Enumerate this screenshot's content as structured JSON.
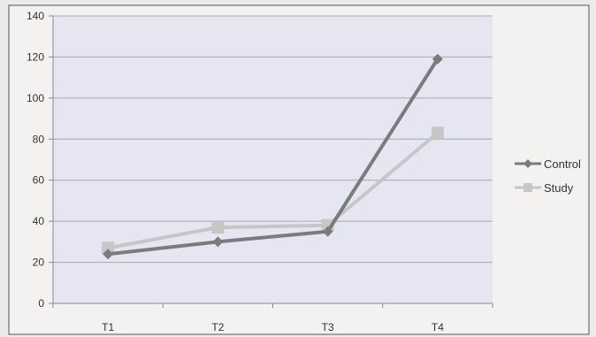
{
  "chart_data": {
    "type": "line",
    "categories": [
      "T1",
      "T2",
      "T3",
      "T4"
    ],
    "series": [
      {
        "name": "Control",
        "values": [
          24,
          30,
          35,
          119
        ],
        "color": "#7b7b7b",
        "marker": "diamond"
      },
      {
        "name": "Study",
        "values": [
          27,
          37,
          38,
          83
        ],
        "color": "#c6c6c6",
        "marker": "square"
      }
    ],
    "ylim": [
      0,
      140
    ],
    "yticks": [
      "0",
      "20",
      "40",
      "60",
      "80",
      "100",
      "120",
      "140"
    ],
    "grid": true,
    "legend_position": "right"
  }
}
